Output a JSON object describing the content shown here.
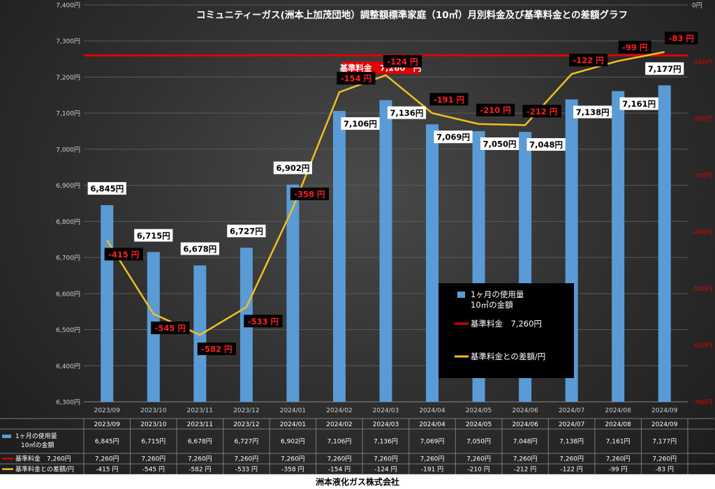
{
  "chart_data": {
    "type": "bar",
    "title": "コミュニティーガス(洲本上加茂団地）調整額標準家庭（10㎥）月別料金及び基準料金との差額グラフ",
    "categories": [
      "2023/09",
      "2023/10",
      "2023/11",
      "2023/12",
      "2024/01",
      "2024/02",
      "2024/03",
      "2024/04",
      "2024/05",
      "2024/06",
      "2024/07",
      "2024/08",
      "2024/09"
    ],
    "y_left": {
      "min": 6300,
      "max": 7400,
      "step": 100,
      "suffix": "円"
    },
    "y_right": {
      "min": -700,
      "max": 0,
      "step": 100,
      "suffix": "円"
    },
    "series": [
      {
        "name": "1ヶ月の使用量 10㎥の金額",
        "legend": [
          "1ヶ月の使用量",
          "10㎥の金額"
        ],
        "type": "bar",
        "axis": "left",
        "color": "#5b9bd5",
        "values": [
          6845,
          6715,
          6678,
          6727,
          6902,
          7106,
          7136,
          7069,
          7050,
          7048,
          7138,
          7161,
          7177
        ],
        "labels": [
          "6,845円",
          "6,715円",
          "6,678円",
          "6,727円",
          "6,902円",
          "7,106円",
          "7,136円",
          "7,069円",
          "7,050円",
          "7,048円",
          "7,138円",
          "7,161円",
          "7,177円"
        ]
      },
      {
        "name": "基準料金 7,260円",
        "legend": [
          "基準料金　7,260円"
        ],
        "type": "line",
        "axis": "left",
        "color": "#e00000",
        "values": [
          7260,
          7260,
          7260,
          7260,
          7260,
          7260,
          7260,
          7260,
          7260,
          7260,
          7260,
          7260,
          7260
        ],
        "labels": [
          "7,260円",
          "7,260円",
          "7,260円",
          "7,260円",
          "7,260円",
          "7,260円",
          "7,260円",
          "7,260円",
          "7,260円",
          "7,260円",
          "7,260円",
          "7,260円",
          "7,260円"
        ]
      },
      {
        "name": "基準料金との差額/円",
        "legend": [
          "基準料金との差額/円"
        ],
        "type": "line",
        "axis": "right",
        "color": "#f0c020",
        "values": [
          -415,
          -545,
          -582,
          -533,
          -358,
          -154,
          -124,
          -191,
          -210,
          -212,
          -122,
          -99,
          -83
        ],
        "labels": [
          "-415 円",
          "-545 円",
          "-582 円",
          "-533 円",
          "-358 円",
          "-154 円",
          "-124 円",
          "-191 円",
          "-210 円",
          "-212 円",
          "-122 円",
          "-99 円",
          "-83 円"
        ]
      }
    ],
    "base_label": "基準料金　7,260　円",
    "table_series_names": [
      "1ヶ月の使用量\n10㎥の金額",
      "基準料金　7,260円",
      "基準料金との差額/円"
    ]
  },
  "footer": {
    "company": "洲本液化ガス株式会社"
  }
}
